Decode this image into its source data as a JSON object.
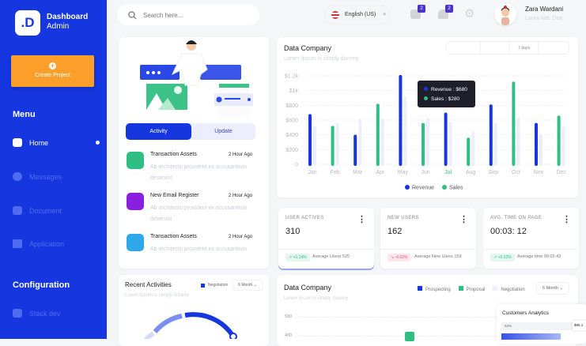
{
  "sidebar": {
    "logo_text": ".D",
    "brand_line1": "Dashboard",
    "brand_line2": "Admin",
    "create_label": "Create Project",
    "menu_title": "Menu",
    "items": [
      {
        "label": "Home",
        "icon": "home-icon",
        "active": true
      },
      {
        "label": "Messages",
        "icon": "bolt-icon"
      },
      {
        "label": "Document",
        "icon": "archive-icon"
      },
      {
        "label": "Application",
        "icon": "grid-icon"
      }
    ],
    "config_title": "Configuration",
    "config_items": [
      {
        "label": "Stack dev",
        "icon": "layers-icon"
      }
    ]
  },
  "header": {
    "search_placeholder": "Search here...",
    "language": "English (US)",
    "messages_count": "2",
    "notifications_count": "2",
    "user_name": "Zara Wardani",
    "user_sub": "Laura Nat. Doe"
  },
  "activity_card": {
    "tabs": [
      "Activity",
      "Update"
    ],
    "items": [
      {
        "title": "Transaction Assets",
        "time": "2 Hour Ago",
        "desc": "Ab architecto provident ex accusantium deserunt.",
        "color": "#2fbf85"
      },
      {
        "title": "New Email Register",
        "time": "2 Hour Ago",
        "desc": "Ab architecto provident ex accusantium deserunt.",
        "color": "#8a1fe0"
      },
      {
        "title": "Transaction Assets",
        "time": "2 Hour Ago",
        "desc": "Ab architecto provident ex accusantium",
        "color": "#2fa8ea"
      }
    ]
  },
  "data_company": {
    "title": "Data Company",
    "subtitle": "Lorem Ipsum is simply dummy",
    "range": "7 days",
    "tooltip": {
      "revenue": "Revenue : $680",
      "sales": "Sales : $280"
    }
  },
  "chart_data": {
    "type": "bar",
    "categories": [
      "Jan",
      "Feb",
      "Mar",
      "Apr",
      "May",
      "Jun",
      "Jul",
      "Aug",
      "Sep",
      "Oct",
      "Nov",
      "Dec"
    ],
    "highlighted_category": "Jul",
    "y_ticks": [
      "0",
      "$200",
      "$400",
      "$600",
      "$800",
      "$1k",
      "$1.2k"
    ],
    "ylim": [
      0,
      1200
    ],
    "grid": true,
    "legend_position": "bottom",
    "series": [
      {
        "name": "Revenue",
        "color": "#1637e0",
        "values": [
          660,
          null,
          380,
          null,
          1190,
          null,
          680,
          null,
          790,
          null,
          540,
          null
        ]
      },
      {
        "name": "Sales",
        "color": "#2fbf85",
        "values": [
          null,
          500,
          null,
          800,
          null,
          540,
          null,
          340,
          null,
          1100,
          null,
          640
        ]
      },
      {
        "color": "#eceefb",
        "values": [
          490,
          540,
          600,
          600,
          900,
          610,
          550,
          420,
          540,
          620,
          390,
          490
        ]
      }
    ]
  },
  "stats": [
    {
      "label": "USER ACTIVES",
      "value": "310",
      "change": "↗ +1.14%",
      "trend": "up",
      "avg": "Average Users 525"
    },
    {
      "label": "NEW USERS",
      "value": "162",
      "change": "↘ -0.62%",
      "trend": "down",
      "avg": "Average New Users 159"
    },
    {
      "label": "AVG. TIME ON PAGE",
      "value": "00:03: 12",
      "change": "↗ +0.32%",
      "trend": "up",
      "avg": "Average time 00:02:43"
    }
  ],
  "recent": {
    "title": "Recent Activities",
    "subtitle": "Lorem Ipsum is simply dummy",
    "legend": "Negotiation",
    "range": "6 Month"
  },
  "data_company2": {
    "title": "Data Company",
    "subtitle": "Lorem Ipsum is simply dummy",
    "legend": [
      {
        "label": "Prospecting",
        "color": "#1637e0"
      },
      {
        "label": "Proposal",
        "color": "#2fbf85"
      },
      {
        "label": "Negotiation",
        "color": "#eceefb"
      }
    ],
    "range": "6 Month",
    "y_ticks": [
      "500",
      "400"
    ]
  },
  "customers": {
    "title": "Customers Analytics",
    "percent": "52%",
    "value": "$95,1"
  }
}
